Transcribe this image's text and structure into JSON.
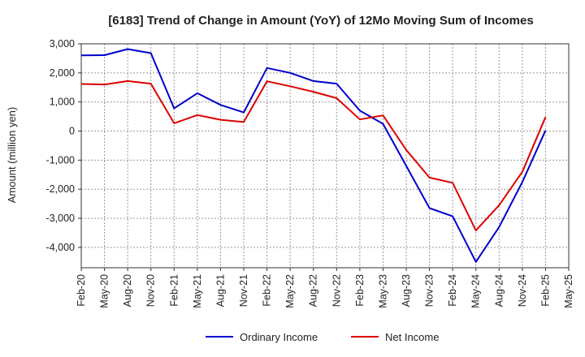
{
  "chart_data": {
    "type": "line",
    "title": "[6183]  Trend of Change in Amount (YoY) of 12Mo Moving Sum of Incomes",
    "xlabel": "",
    "ylabel": "Amount (million yen)",
    "ylim": [
      -4700,
      3000
    ],
    "yticks": [
      3000,
      2000,
      1000,
      0,
      -1000,
      -2000,
      -3000,
      -4000
    ],
    "ytick_labels": [
      "3,000",
      "2,000",
      "1,000",
      "0",
      "-1,000",
      "-2,000",
      "-3,000",
      "-4,000"
    ],
    "categories": [
      "Feb-20",
      "May-20",
      "Aug-20",
      "Nov-20",
      "Feb-21",
      "May-21",
      "Aug-21",
      "Nov-21",
      "Feb-22",
      "May-22",
      "Aug-22",
      "Nov-22",
      "Feb-23",
      "May-23",
      "Aug-23",
      "Nov-23",
      "Feb-24",
      "May-24",
      "Aug-24",
      "Nov-24",
      "Feb-25",
      "May-25"
    ],
    "grid": true,
    "legend_position": "bottom",
    "series": [
      {
        "name": "Ordinary Income",
        "color": "#0000cc",
        "values": [
          2600,
          2610,
          2820,
          2680,
          780,
          1300,
          900,
          640,
          2170,
          2000,
          1720,
          1630,
          700,
          250,
          -1200,
          -2650,
          -2930,
          -4500,
          -3300,
          -1750,
          20,
          null
        ]
      },
      {
        "name": "Net Income",
        "color": "#dd0000",
        "values": [
          1620,
          1600,
          1720,
          1630,
          270,
          550,
          390,
          310,
          1710,
          1540,
          1350,
          1130,
          400,
          540,
          -650,
          -1600,
          -1780,
          -3420,
          -2550,
          -1400,
          480,
          null
        ]
      }
    ]
  }
}
